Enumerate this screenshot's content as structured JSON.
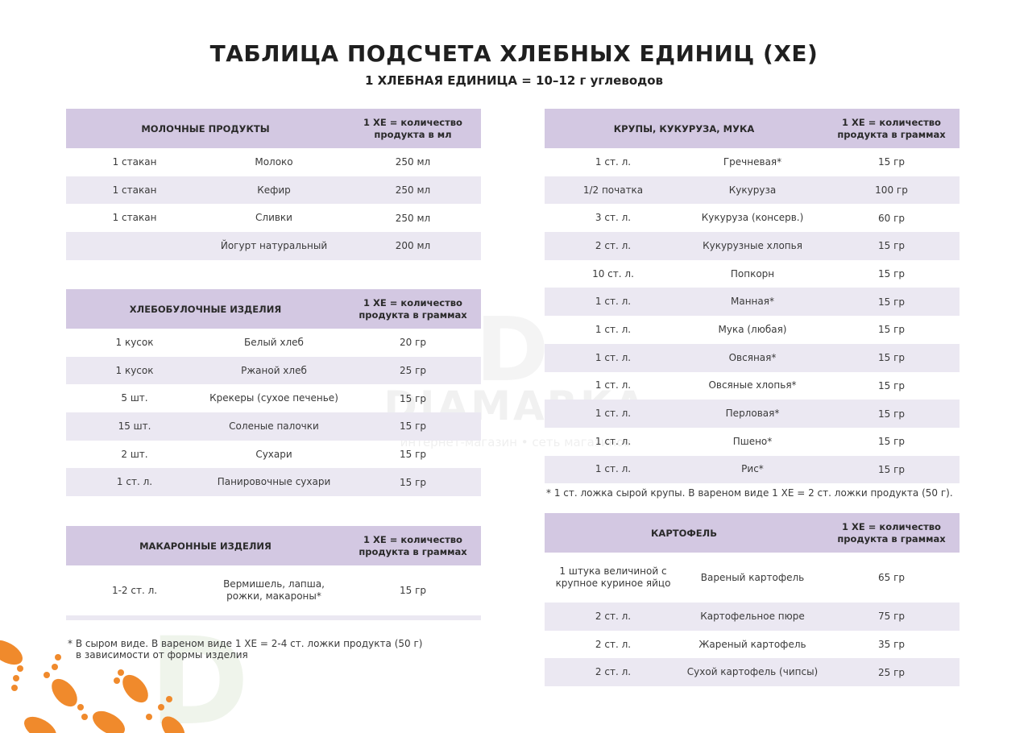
{
  "title": "ТАБЛИЦА ПОДСЧЕТА ХЛЕБНЫХ ЕДИНИЦ (ХЕ)",
  "subtitle": "1 ХЛЕБНАЯ ЕДИНИЦА = 10–12 г углеводов",
  "watermark": {
    "brand": "DIAMARKA",
    "tagline": "интернет-магазин • сеть магазинов",
    "accent": "#f08a2c"
  },
  "tables": [
    {
      "id": "dairy",
      "title": "МОЛОЧНЫЕ ПРОДУКТЫ",
      "unit": "1 ХЕ = количество продукта в мл",
      "rows": [
        [
          "1 стакан",
          "Молоко",
          "250 мл"
        ],
        [
          "1 стакан",
          "Кефир",
          "250 мл"
        ],
        [
          "1 стакан",
          "Сливки",
          "250 мл"
        ],
        [
          "",
          "Йогурт натуральный",
          "200 мл"
        ]
      ]
    },
    {
      "id": "bakery",
      "title": "ХЛЕБОБУЛОЧНЫЕ ИЗДЕЛИЯ",
      "unit": "1 ХЕ = количество продукта в граммах",
      "rows": [
        [
          "1 кусок",
          "Белый хлеб",
          "20 гр"
        ],
        [
          "1 кусок",
          "Ржаной хлеб",
          "25 гр"
        ],
        [
          "5 шт.",
          "Крекеры (сухое печенье)",
          "15 гр"
        ],
        [
          "15 шт.",
          "Соленые палочки",
          "15 гр"
        ],
        [
          "2 шт.",
          "Сухари",
          "15 гр"
        ],
        [
          "1 ст. л.",
          "Панировочные сухари",
          "15 гр"
        ]
      ]
    },
    {
      "id": "pasta",
      "title": "МАКАРОННЫЕ ИЗДЕЛИЯ",
      "unit": "1 ХЕ = количество продукта в граммах",
      "rows": [
        [
          "1-2 ст. л.",
          "Вермишель, лапша, рожки, макароны*",
          "15 гр"
        ]
      ]
    },
    {
      "id": "grains",
      "title": "КРУПЫ, КУКУРУЗА, МУКА",
      "unit": "1 ХЕ = количество продукта в граммах",
      "rows": [
        [
          "1 ст. л.",
          "Гречневая*",
          "15  гр"
        ],
        [
          "1/2 початка",
          "Кукуруза",
          "100 гр"
        ],
        [
          "3 ст. л.",
          "Кукуруза (консерв.)",
          "60 гр"
        ],
        [
          "2 ст. л.",
          "Кукурузные хлопья",
          "15 гр"
        ],
        [
          "10 ст. л.",
          "Попкорн",
          "15 гр"
        ],
        [
          "1 ст. л.",
          "Манная*",
          "15 гр"
        ],
        [
          "1 ст. л.",
          "Мука (любая)",
          "15 гр"
        ],
        [
          "1 ст. л.",
          "Овсяная*",
          "15 гр"
        ],
        [
          "1 ст. л.",
          "Овсяные хлопья*",
          "15 гр"
        ],
        [
          "1 ст. л.",
          "Перловая*",
          "15 гр"
        ],
        [
          "1 ст. л.",
          "Пшено*",
          "15 гр"
        ],
        [
          "1 ст. л.",
          "Рис*",
          "15 гр"
        ]
      ]
    },
    {
      "id": "potato",
      "title": "КАРТОФЕЛЬ",
      "unit": "1 ХЕ = количество продукта в граммах",
      "rows": [
        [
          "1 штука величиной с крупное куриное яйцо",
          "Вареный картофель",
          "65 гр"
        ],
        [
          "2 ст. л.",
          "Картофельное пюре",
          "75 гр"
        ],
        [
          "2 ст. л.",
          "Жареный картофель",
          "35 гр"
        ],
        [
          "2 ст. л.",
          "Сухой картофель (чипсы)",
          "25 гр"
        ]
      ]
    }
  ],
  "notes": {
    "grains": "* 1 ст. ложка сырой крупы. В вареном виде 1 ХЕ = 2 ст. ложки продукта (50 г).",
    "pasta_line1": "* В сыром виде. В вареном виде 1 ХЕ = 2-4 ст. ложки продукта (50 г)",
    "pasta_line2": "в зависимости от формы изделия"
  }
}
